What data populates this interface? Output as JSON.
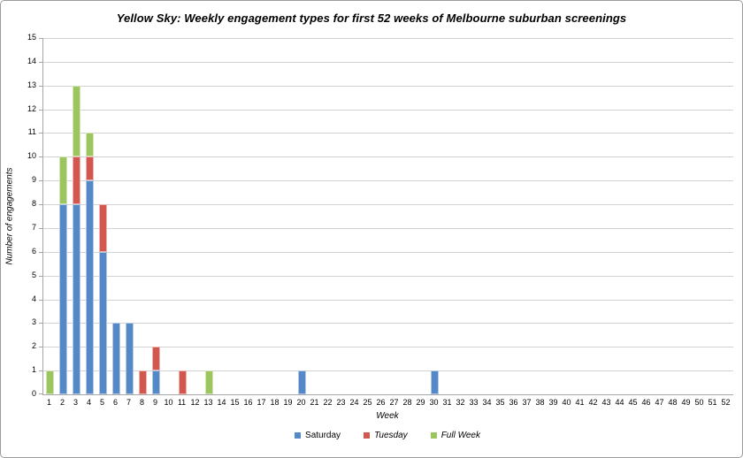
{
  "chart_data": {
    "type": "bar",
    "stacked": true,
    "title": "Yellow Sky: Weekly engagement types for first 52 weeks of Melbourne suburban screenings",
    "xlabel": "Week",
    "ylabel": "Number of engagements",
    "ylim": [
      0,
      15
    ],
    "y_tick_step": 1,
    "grid": true,
    "legend_position": "bottom",
    "categories": [
      1,
      2,
      3,
      4,
      5,
      6,
      7,
      8,
      9,
      10,
      11,
      12,
      13,
      14,
      15,
      16,
      17,
      18,
      19,
      20,
      21,
      22,
      23,
      24,
      25,
      26,
      27,
      28,
      29,
      30,
      31,
      32,
      33,
      34,
      35,
      36,
      37,
      38,
      39,
      40,
      41,
      42,
      43,
      44,
      45,
      46,
      47,
      48,
      49,
      50,
      51,
      52
    ],
    "series": [
      {
        "name": "Saturday",
        "color": "#5488c7",
        "values": [
          0,
          8,
          8,
          9,
          6,
          3,
          3,
          0,
          1,
          0,
          0,
          0,
          0,
          0,
          0,
          0,
          0,
          0,
          0,
          1,
          0,
          0,
          0,
          0,
          0,
          0,
          0,
          0,
          0,
          1,
          0,
          0,
          0,
          0,
          0,
          0,
          0,
          0,
          0,
          0,
          0,
          0,
          0,
          0,
          0,
          0,
          0,
          0,
          0,
          0,
          0,
          0
        ]
      },
      {
        "name": "Tuesday",
        "color": "#d2574e",
        "values": [
          0,
          0,
          2,
          1,
          2,
          0,
          0,
          1,
          1,
          0,
          1,
          0,
          0,
          0,
          0,
          0,
          0,
          0,
          0,
          0,
          0,
          0,
          0,
          0,
          0,
          0,
          0,
          0,
          0,
          0,
          0,
          0,
          0,
          0,
          0,
          0,
          0,
          0,
          0,
          0,
          0,
          0,
          0,
          0,
          0,
          0,
          0,
          0,
          0,
          0,
          0,
          0
        ]
      },
      {
        "name": "Full Week",
        "color": "#9dc55f",
        "values": [
          1,
          2,
          3,
          1,
          0,
          0,
          0,
          0,
          0,
          0,
          0,
          0,
          1,
          0,
          0,
          0,
          0,
          0,
          0,
          0,
          0,
          0,
          0,
          0,
          0,
          0,
          0,
          0,
          0,
          0,
          0,
          0,
          0,
          0,
          0,
          0,
          0,
          0,
          0,
          0,
          0,
          0,
          0,
          0,
          0,
          0,
          0,
          0,
          0,
          0,
          0,
          0
        ]
      }
    ],
    "style": {
      "gridline_color": "#d2d2d2",
      "axis_line_color": "#a6a6a6"
    }
  }
}
